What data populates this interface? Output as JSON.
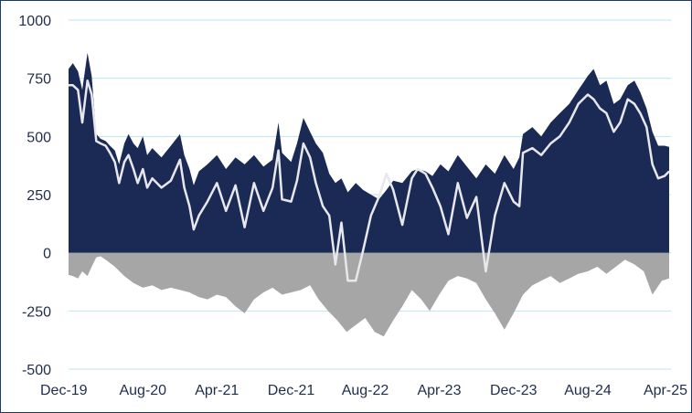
{
  "chart_data": {
    "type": "area",
    "xlim": [
      "2019-12-01",
      "2025-05-01"
    ],
    "ylim": [
      -500,
      1000
    ],
    "yticks": [
      "1000",
      "750",
      "500",
      "250",
      "0",
      "-250",
      "-500"
    ],
    "yticks_values": [
      1000,
      750,
      500,
      250,
      0,
      -250,
      -500
    ],
    "xticks": [
      "Dec-19",
      "Aug-20",
      "Apr-21",
      "Dec-21",
      "Aug-22",
      "Apr-23",
      "Dec-23",
      "Aug-24",
      "Apr-25"
    ],
    "xticks_dates": [
      "2019-12-01",
      "2020-08-01",
      "2021-04-01",
      "2021-12-01",
      "2022-08-01",
      "2023-04-01",
      "2023-12-01",
      "2024-08-01",
      "2025-04-01"
    ],
    "grid": true,
    "series": [
      {
        "role": "upper-area",
        "color": "#1b2a55",
        "points": [
          [
            "2019-12-01",
            790
          ],
          [
            "2019-12-15",
            815
          ],
          [
            "2020-01-01",
            780
          ],
          [
            "2020-01-15",
            700
          ],
          [
            "2020-02-01",
            860
          ],
          [
            "2020-02-15",
            760
          ],
          [
            "2020-03-01",
            510
          ],
          [
            "2020-03-15",
            490
          ],
          [
            "2020-04-01",
            480
          ],
          [
            "2020-04-15",
            460
          ],
          [
            "2020-05-01",
            440
          ],
          [
            "2020-05-15",
            380
          ],
          [
            "2020-06-01",
            470
          ],
          [
            "2020-06-15",
            510
          ],
          [
            "2020-07-01",
            470
          ],
          [
            "2020-07-15",
            450
          ],
          [
            "2020-08-01",
            500
          ],
          [
            "2020-08-15",
            420
          ],
          [
            "2020-09-01",
            450
          ],
          [
            "2020-10-01",
            410
          ],
          [
            "2020-11-01",
            460
          ],
          [
            "2020-12-01",
            510
          ],
          [
            "2020-12-15",
            420
          ],
          [
            "2021-01-01",
            360
          ],
          [
            "2021-01-15",
            290
          ],
          [
            "2021-02-01",
            350
          ],
          [
            "2021-03-01",
            380
          ],
          [
            "2021-04-01",
            420
          ],
          [
            "2021-05-01",
            360
          ],
          [
            "2021-06-01",
            410
          ],
          [
            "2021-07-01",
            380
          ],
          [
            "2021-08-01",
            420
          ],
          [
            "2021-09-01",
            370
          ],
          [
            "2021-10-01",
            400
          ],
          [
            "2021-10-20",
            560
          ],
          [
            "2021-11-01",
            430
          ],
          [
            "2021-12-01",
            390
          ],
          [
            "2021-12-20",
            470
          ],
          [
            "2022-01-10",
            580
          ],
          [
            "2022-02-01",
            520
          ],
          [
            "2022-02-20",
            470
          ],
          [
            "2022-03-15",
            430
          ],
          [
            "2022-04-05",
            340
          ],
          [
            "2022-04-25",
            300
          ],
          [
            "2022-05-15",
            320
          ],
          [
            "2022-06-05",
            260
          ],
          [
            "2022-07-01",
            300
          ],
          [
            "2022-07-25",
            270
          ],
          [
            "2022-08-20",
            250
          ],
          [
            "2022-09-15",
            230
          ],
          [
            "2022-10-10",
            270
          ],
          [
            "2022-11-01",
            310
          ],
          [
            "2022-12-01",
            300
          ],
          [
            "2023-01-01",
            350
          ],
          [
            "2023-01-20",
            360
          ],
          [
            "2023-02-15",
            350
          ],
          [
            "2023-03-10",
            330
          ],
          [
            "2023-04-05",
            380
          ],
          [
            "2023-05-01",
            350
          ],
          [
            "2023-06-01",
            420
          ],
          [
            "2023-07-01",
            370
          ],
          [
            "2023-08-01",
            320
          ],
          [
            "2023-09-01",
            380
          ],
          [
            "2023-10-01",
            340
          ],
          [
            "2023-11-01",
            420
          ],
          [
            "2023-12-01",
            360
          ],
          [
            "2023-12-20",
            410
          ],
          [
            "2024-01-01",
            510
          ],
          [
            "2024-02-01",
            540
          ],
          [
            "2024-03-01",
            500
          ],
          [
            "2024-04-01",
            560
          ],
          [
            "2024-05-01",
            600
          ],
          [
            "2024-06-01",
            640
          ],
          [
            "2024-07-01",
            700
          ],
          [
            "2024-08-01",
            760
          ],
          [
            "2024-08-20",
            790
          ],
          [
            "2024-09-10",
            720
          ],
          [
            "2024-10-01",
            740
          ],
          [
            "2024-10-25",
            640
          ],
          [
            "2024-11-15",
            660
          ],
          [
            "2024-12-10",
            720
          ],
          [
            "2025-01-01",
            740
          ],
          [
            "2025-01-20",
            690
          ],
          [
            "2025-02-10",
            620
          ],
          [
            "2025-03-01",
            520
          ],
          [
            "2025-03-20",
            460
          ],
          [
            "2025-04-10",
            460
          ],
          [
            "2025-04-25",
            455
          ]
        ]
      },
      {
        "role": "lower-area",
        "color": "#a6a6a6",
        "points": [
          [
            "2019-12-01",
            -95
          ],
          [
            "2019-12-15",
            -100
          ],
          [
            "2020-01-01",
            -110
          ],
          [
            "2020-01-15",
            -80
          ],
          [
            "2020-02-01",
            -100
          ],
          [
            "2020-02-15",
            -60
          ],
          [
            "2020-03-01",
            -20
          ],
          [
            "2020-03-15",
            -15
          ],
          [
            "2020-04-01",
            -30
          ],
          [
            "2020-05-01",
            -60
          ],
          [
            "2020-06-01",
            -100
          ],
          [
            "2020-07-01",
            -130
          ],
          [
            "2020-08-01",
            -150
          ],
          [
            "2020-09-01",
            -140
          ],
          [
            "2020-10-01",
            -160
          ],
          [
            "2020-11-01",
            -150
          ],
          [
            "2020-12-01",
            -160
          ],
          [
            "2021-01-01",
            -170
          ],
          [
            "2021-02-01",
            -190
          ],
          [
            "2021-03-01",
            -200
          ],
          [
            "2021-04-01",
            -180
          ],
          [
            "2021-05-01",
            -190
          ],
          [
            "2021-06-01",
            -230
          ],
          [
            "2021-07-01",
            -260
          ],
          [
            "2021-08-01",
            -200
          ],
          [
            "2021-09-01",
            -170
          ],
          [
            "2021-10-01",
            -150
          ],
          [
            "2021-11-01",
            -180
          ],
          [
            "2021-12-01",
            -170
          ],
          [
            "2022-01-01",
            -160
          ],
          [
            "2022-02-01",
            -140
          ],
          [
            "2022-03-01",
            -200
          ],
          [
            "2022-04-01",
            -250
          ],
          [
            "2022-05-01",
            -290
          ],
          [
            "2022-06-01",
            -340
          ],
          [
            "2022-07-01",
            -310
          ],
          [
            "2022-08-01",
            -280
          ],
          [
            "2022-09-01",
            -340
          ],
          [
            "2022-10-01",
            -360
          ],
          [
            "2022-11-01",
            -290
          ],
          [
            "2022-12-01",
            -230
          ],
          [
            "2023-01-01",
            -160
          ],
          [
            "2023-02-01",
            -200
          ],
          [
            "2023-03-01",
            -250
          ],
          [
            "2023-04-01",
            -180
          ],
          [
            "2023-05-01",
            -120
          ],
          [
            "2023-06-01",
            -100
          ],
          [
            "2023-07-01",
            -110
          ],
          [
            "2023-08-01",
            -130
          ],
          [
            "2023-09-01",
            -200
          ],
          [
            "2023-10-01",
            -260
          ],
          [
            "2023-11-01",
            -330
          ],
          [
            "2023-12-01",
            -260
          ],
          [
            "2024-01-01",
            -180
          ],
          [
            "2024-02-01",
            -140
          ],
          [
            "2024-03-01",
            -120
          ],
          [
            "2024-04-01",
            -100
          ],
          [
            "2024-05-01",
            -130
          ],
          [
            "2024-06-01",
            -110
          ],
          [
            "2024-07-01",
            -90
          ],
          [
            "2024-08-01",
            -80
          ],
          [
            "2024-09-01",
            -60
          ],
          [
            "2024-10-01",
            -90
          ],
          [
            "2024-11-01",
            -60
          ],
          [
            "2024-12-01",
            -30
          ],
          [
            "2025-01-01",
            -50
          ],
          [
            "2025-02-01",
            -80
          ],
          [
            "2025-03-01",
            -180
          ],
          [
            "2025-04-01",
            -120
          ],
          [
            "2025-04-25",
            -110
          ]
        ]
      },
      {
        "role": "line",
        "color": "#e8e8ec",
        "points": [
          [
            "2019-12-01",
            720
          ],
          [
            "2019-12-15",
            720
          ],
          [
            "2020-01-01",
            700
          ],
          [
            "2020-01-15",
            560
          ],
          [
            "2020-02-01",
            740
          ],
          [
            "2020-02-15",
            680
          ],
          [
            "2020-03-01",
            480
          ],
          [
            "2020-03-15",
            470
          ],
          [
            "2020-04-01",
            460
          ],
          [
            "2020-04-15",
            430
          ],
          [
            "2020-05-01",
            390
          ],
          [
            "2020-05-15",
            300
          ],
          [
            "2020-06-01",
            390
          ],
          [
            "2020-06-15",
            420
          ],
          [
            "2020-07-01",
            360
          ],
          [
            "2020-07-15",
            300
          ],
          [
            "2020-08-01",
            360
          ],
          [
            "2020-08-15",
            280
          ],
          [
            "2020-09-01",
            320
          ],
          [
            "2020-10-01",
            280
          ],
          [
            "2020-11-01",
            310
          ],
          [
            "2020-12-01",
            400
          ],
          [
            "2020-12-15",
            280
          ],
          [
            "2021-01-01",
            200
          ],
          [
            "2021-01-15",
            100
          ],
          [
            "2021-02-01",
            160
          ],
          [
            "2021-03-01",
            220
          ],
          [
            "2021-04-01",
            300
          ],
          [
            "2021-05-01",
            180
          ],
          [
            "2021-06-01",
            290
          ],
          [
            "2021-07-01",
            110
          ],
          [
            "2021-08-01",
            300
          ],
          [
            "2021-09-01",
            180
          ],
          [
            "2021-10-01",
            280
          ],
          [
            "2021-10-20",
            440
          ],
          [
            "2021-11-01",
            230
          ],
          [
            "2021-12-01",
            220
          ],
          [
            "2021-12-20",
            310
          ],
          [
            "2022-01-10",
            470
          ],
          [
            "2022-02-01",
            410
          ],
          [
            "2022-02-20",
            300
          ],
          [
            "2022-03-15",
            200
          ],
          [
            "2022-04-05",
            160
          ],
          [
            "2022-04-25",
            -50
          ],
          [
            "2022-05-15",
            130
          ],
          [
            "2022-06-05",
            -120
          ],
          [
            "2022-07-01",
            -120
          ],
          [
            "2022-07-25",
            10
          ],
          [
            "2022-08-20",
            160
          ],
          [
            "2022-09-15",
            240
          ],
          [
            "2022-10-10",
            340
          ],
          [
            "2022-11-01",
            270
          ],
          [
            "2022-12-01",
            120
          ],
          [
            "2023-01-01",
            320
          ],
          [
            "2023-01-20",
            360
          ],
          [
            "2023-02-15",
            340
          ],
          [
            "2023-03-10",
            280
          ],
          [
            "2023-04-05",
            200
          ],
          [
            "2023-05-01",
            80
          ],
          [
            "2023-06-01",
            300
          ],
          [
            "2023-07-01",
            150
          ],
          [
            "2023-08-01",
            240
          ],
          [
            "2023-09-01",
            -80
          ],
          [
            "2023-10-01",
            160
          ],
          [
            "2023-11-01",
            300
          ],
          [
            "2023-12-01",
            220
          ],
          [
            "2023-12-20",
            200
          ],
          [
            "2024-01-01",
            430
          ],
          [
            "2024-02-01",
            450
          ],
          [
            "2024-03-01",
            420
          ],
          [
            "2024-04-01",
            470
          ],
          [
            "2024-05-01",
            500
          ],
          [
            "2024-06-01",
            560
          ],
          [
            "2024-07-01",
            640
          ],
          [
            "2024-08-01",
            680
          ],
          [
            "2024-08-20",
            660
          ],
          [
            "2024-09-10",
            620
          ],
          [
            "2024-10-01",
            600
          ],
          [
            "2024-10-25",
            520
          ],
          [
            "2024-11-15",
            560
          ],
          [
            "2024-12-10",
            660
          ],
          [
            "2025-01-01",
            640
          ],
          [
            "2025-01-20",
            600
          ],
          [
            "2025-02-10",
            540
          ],
          [
            "2025-03-01",
            380
          ],
          [
            "2025-03-20",
            320
          ],
          [
            "2025-04-10",
            330
          ],
          [
            "2025-04-25",
            350
          ]
        ]
      }
    ]
  }
}
